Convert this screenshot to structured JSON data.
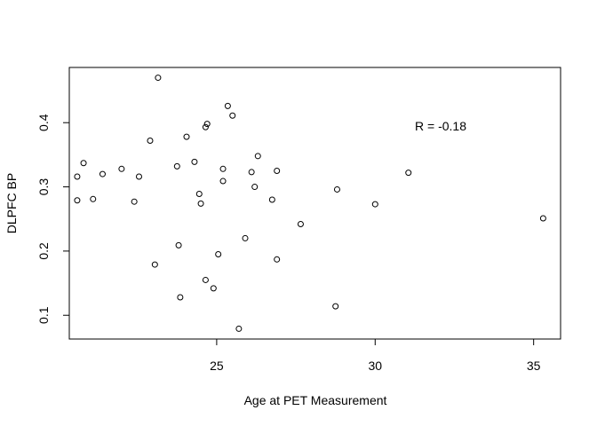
{
  "chart_data": {
    "type": "scatter",
    "title": "",
    "xlabel": "Age at PET Measurement",
    "ylabel": "DLPFC BP",
    "xlim": [
      20.35,
      35.85
    ],
    "ylim": [
      0.063,
      0.486
    ],
    "xticks": [
      25,
      30,
      35
    ],
    "yticks": [
      0.1,
      0.2,
      0.3,
      0.4
    ],
    "xtick_labels": [
      "25",
      "30",
      "35"
    ],
    "ytick_labels": [
      "0.1",
      "0.2",
      "0.3",
      "0.4"
    ],
    "grid": false,
    "annotation": "R = -0.18",
    "point_color": "#000000",
    "points": [
      [
        20.6,
        0.316
      ],
      [
        20.6,
        0.279
      ],
      [
        20.8,
        0.337
      ],
      [
        21.1,
        0.281
      ],
      [
        21.4,
        0.32
      ],
      [
        22.0,
        0.328
      ],
      [
        22.4,
        0.277
      ],
      [
        22.55,
        0.316
      ],
      [
        22.9,
        0.372
      ],
      [
        23.05,
        0.179
      ],
      [
        23.15,
        0.47
      ],
      [
        23.75,
        0.332
      ],
      [
        23.8,
        0.209
      ],
      [
        23.85,
        0.128
      ],
      [
        24.05,
        0.378
      ],
      [
        24.3,
        0.339
      ],
      [
        24.45,
        0.289
      ],
      [
        24.5,
        0.274
      ],
      [
        24.65,
        0.155
      ],
      [
        24.65,
        0.393
      ],
      [
        24.7,
        0.398
      ],
      [
        24.9,
        0.142
      ],
      [
        25.05,
        0.195
      ],
      [
        25.2,
        0.328
      ],
      [
        25.2,
        0.309
      ],
      [
        25.35,
        0.426
      ],
      [
        25.5,
        0.411
      ],
      [
        25.7,
        0.079
      ],
      [
        25.9,
        0.22
      ],
      [
        26.1,
        0.323
      ],
      [
        26.2,
        0.3
      ],
      [
        26.3,
        0.348
      ],
      [
        26.75,
        0.28
      ],
      [
        26.9,
        0.325
      ],
      [
        26.9,
        0.187
      ],
      [
        27.65,
        0.242
      ],
      [
        28.75,
        0.114
      ],
      [
        28.8,
        0.296
      ],
      [
        30.0,
        0.273
      ],
      [
        31.05,
        0.322
      ],
      [
        35.3,
        0.251
      ]
    ]
  }
}
